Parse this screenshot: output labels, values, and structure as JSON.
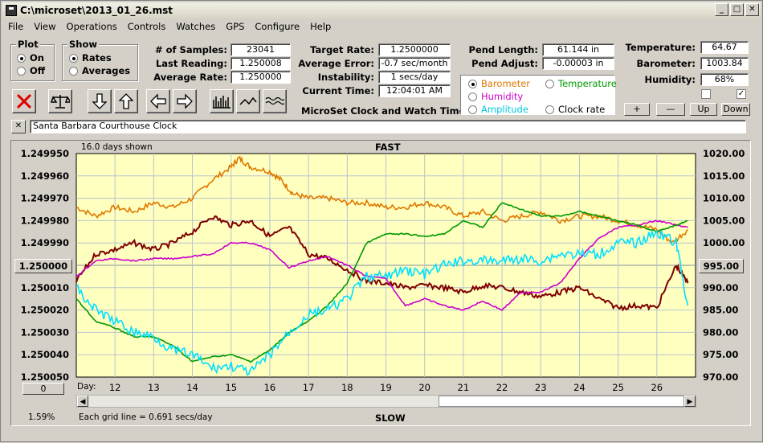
{
  "window": {
    "title": "C:\\microset\\2013_01_26.mst"
  },
  "menu": [
    "File",
    "View",
    "Operations",
    "Controls",
    "Watches",
    "GPS",
    "Configure",
    "Help"
  ],
  "plot_group": {
    "title": "Plot",
    "on": "On",
    "off": "Off",
    "selected": "On"
  },
  "show_group": {
    "title": "Show",
    "rates": "Rates",
    "averages": "Averages",
    "selected": "Rates"
  },
  "stats": {
    "samples_label": "# of Samples:",
    "samples": "23041",
    "last_label": "Last Reading:",
    "last": "1.250008",
    "avg_label": "Average Rate:",
    "avg": "1.250000",
    "target_label": "Target Rate:",
    "target": "1.2500000",
    "err_label": "Average Error:",
    "err": "-0.7 sec/month",
    "inst_label": "Instability:",
    "inst": "1 secs/day",
    "time_label": "Current Time:",
    "time": "12:04:01 AM",
    "pend_len_label": "Pend Length:",
    "pend_len": "61.144 in",
    "pend_adj_label": "Pend Adjust:",
    "pend_adj": "-0.00003 in",
    "temp_label": "Temperature:",
    "temp": "64.67",
    "baro_label": "Barometer:",
    "baro": "1003.84",
    "hum_label": "Humidity:",
    "hum": "68%"
  },
  "app_caption": "MicroSet Clock and Watch Timer",
  "sensor_select": {
    "barometer": "Barometer",
    "temperature": "Temperature",
    "humidity": "Humidity",
    "amplitude": "Amplitude",
    "clock_rate": "Clock rate",
    "selected": "Barometer",
    "colors": {
      "barometer": "#e07800",
      "temperature": "#009900",
      "humidity": "#cc00cc",
      "amplitude": "#00c8e0",
      "clock_rate": "#000000"
    }
  },
  "sensor_buttons": {
    "plus": "+",
    "minus": "—",
    "up": "Up",
    "down": "Down"
  },
  "watch_name": "Santa Barbara Courthouse Clock",
  "close_x": "✕",
  "chart_data": {
    "type": "line",
    "top_label": "FAST",
    "bottom_label": "SLOW",
    "days_shown": "16.0 days shown",
    "grid_note": "Each grid line = 0.691 secs/day",
    "percent": "1.59%",
    "left_ticks": [
      "1.249950",
      "1.249960",
      "1.249970",
      "1.249980",
      "1.249990",
      "1.250000",
      "1.250010",
      "1.250020",
      "1.250030",
      "1.250040",
      "1.250050"
    ],
    "left_center_button": "1.250000",
    "left_bottom_button": "0",
    "right_ticks": [
      "1020.00",
      "1015.00",
      "1010.00",
      "1005.00",
      "1000.00",
      "995.00",
      "990.00",
      "985.00",
      "980.00",
      "975.00",
      "970.00"
    ],
    "right_center_button": "995.00",
    "x_label": "Day:",
    "x_ticks": [
      "12",
      "13",
      "14",
      "15",
      "16",
      "17",
      "18",
      "19",
      "20",
      "21",
      "22",
      "23",
      "24",
      "25",
      "26"
    ],
    "ylim_left": [
      1.25005,
      1.24995
    ],
    "ylim_right": [
      970,
      1020
    ],
    "x_range": [
      11,
      27
    ],
    "series": [
      {
        "name": "Barometer",
        "color": "#e07800",
        "axis": "right",
        "x": [
          11.0,
          11.5,
          12.0,
          12.5,
          13.0,
          13.5,
          14.0,
          14.5,
          15.0,
          15.2,
          15.5,
          16.0,
          16.3,
          16.6,
          17.0,
          17.5,
          18.0,
          18.5,
          19.0,
          19.5,
          20.0,
          20.5,
          21.0,
          21.5,
          22.0,
          22.5,
          23.0,
          23.5,
          24.0,
          24.5,
          25.0,
          25.5,
          26.0,
          26.4,
          26.8
        ],
        "y": [
          1008,
          1006,
          1008,
          1007,
          1009,
          1008,
          1010,
          1014,
          1017,
          1019,
          1017,
          1016,
          1014,
          1011,
          1010,
          1010,
          1009,
          1009,
          1008,
          1008,
          1009,
          1008,
          1006,
          1007,
          1005,
          1006,
          1007,
          1005,
          1006,
          1006,
          1005,
          1004,
          1003,
          1000,
          1003
        ]
      },
      {
        "name": "Clock rate",
        "color": "#800000",
        "axis": "left",
        "x": [
          11.0,
          11.5,
          12.0,
          12.5,
          13.0,
          13.5,
          14.0,
          14.5,
          15.0,
          15.5,
          16.0,
          16.5,
          17.0,
          17.5,
          18.0,
          18.5,
          19.0,
          19.5,
          20.0,
          20.5,
          21.0,
          21.5,
          22.0,
          22.5,
          23.0,
          23.5,
          24.0,
          24.5,
          25.0,
          25.5,
          26.0,
          26.5,
          26.8
        ],
        "y": [
          1.250007,
          1.249995,
          1.249993,
          1.24999,
          1.249993,
          1.24999,
          1.249985,
          1.249978,
          1.249982,
          1.24998,
          1.249987,
          1.249983,
          1.249995,
          1.249997,
          1.250002,
          1.250007,
          1.250008,
          1.25001,
          1.250009,
          1.25001,
          1.250012,
          1.250009,
          1.25001,
          1.250012,
          1.250014,
          1.250012,
          1.25001,
          1.250015,
          1.250019,
          1.250018,
          1.250019,
          1.25,
          1.250008
        ]
      },
      {
        "name": "Humidity",
        "color": "#cc00cc",
        "axis": "left",
        "x": [
          11.0,
          11.5,
          12.0,
          12.5,
          13.0,
          13.5,
          14.0,
          14.5,
          15.0,
          15.5,
          16.0,
          16.5,
          17.0,
          17.5,
          18.0,
          18.5,
          19.0,
          19.5,
          20.0,
          20.5,
          21.0,
          21.5,
          22.0,
          22.5,
          23.0,
          23.5,
          24.0,
          24.5,
          25.0,
          25.5,
          26.0,
          26.5,
          26.8
        ],
        "y": [
          1.250005,
          1.249998,
          1.249997,
          1.249998,
          1.249997,
          1.249997,
          1.249996,
          1.249995,
          1.24999,
          1.24999,
          1.249993,
          1.250001,
          1.249998,
          1.249996,
          1.25,
          1.250005,
          1.250006,
          1.250018,
          1.250015,
          1.250018,
          1.25002,
          1.250016,
          1.25002,
          1.250012,
          1.250012,
          1.250008,
          1.249997,
          1.249988,
          1.249983,
          1.249982,
          1.24998,
          1.249982,
          1.249983
        ]
      },
      {
        "name": "Temperature",
        "color": "#009900",
        "axis": "left",
        "x": [
          11.0,
          11.5,
          12.0,
          12.5,
          13.0,
          13.5,
          14.0,
          14.5,
          15.0,
          15.5,
          16.0,
          16.5,
          17.0,
          17.5,
          18.0,
          18.5,
          19.0,
          19.5,
          20.0,
          20.5,
          21.0,
          21.5,
          22.0,
          22.5,
          23.0,
          23.5,
          24.0,
          24.5,
          25.0,
          25.5,
          26.0,
          26.5,
          26.8
        ],
        "y": [
          1.250015,
          1.250025,
          1.250028,
          1.250032,
          1.250032,
          1.250036,
          1.250043,
          1.250041,
          1.25004,
          1.250043,
          1.250038,
          1.25003,
          1.250025,
          1.250018,
          1.250008,
          1.24999,
          1.249986,
          1.249986,
          1.249987,
          1.249986,
          1.24998,
          1.249983,
          1.249972,
          1.249975,
          1.249978,
          1.249978,
          1.249976,
          1.249978,
          1.24998,
          1.249982,
          1.249985,
          1.249982,
          1.24998
        ]
      },
      {
        "name": "Amplitude",
        "color": "#00e0ff",
        "axis": "left",
        "x": [
          11.0,
          11.5,
          12.0,
          12.5,
          13.0,
          13.5,
          14.0,
          14.5,
          15.0,
          15.5,
          16.0,
          16.5,
          17.0,
          17.5,
          18.0,
          18.5,
          19.0,
          19.5,
          20.0,
          20.5,
          21.0,
          21.5,
          22.0,
          22.5,
          23.0,
          23.5,
          24.0,
          24.5,
          25.0,
          25.5,
          26.0,
          26.5,
          26.8
        ],
        "y": [
          1.25001,
          1.25002,
          1.250025,
          1.25003,
          1.250032,
          1.250038,
          1.25004,
          1.250046,
          1.250045,
          1.250048,
          1.25004,
          1.25003,
          1.250022,
          1.25002,
          1.250015,
          1.250005,
          1.250005,
          1.250002,
          1.250004,
          1.25,
          1.249998,
          1.249998,
          1.249998,
          1.249997,
          1.249998,
          1.249995,
          1.249995,
          1.249995,
          1.24999,
          1.24999,
          1.249985,
          1.24999,
          1.250018
        ]
      }
    ]
  }
}
